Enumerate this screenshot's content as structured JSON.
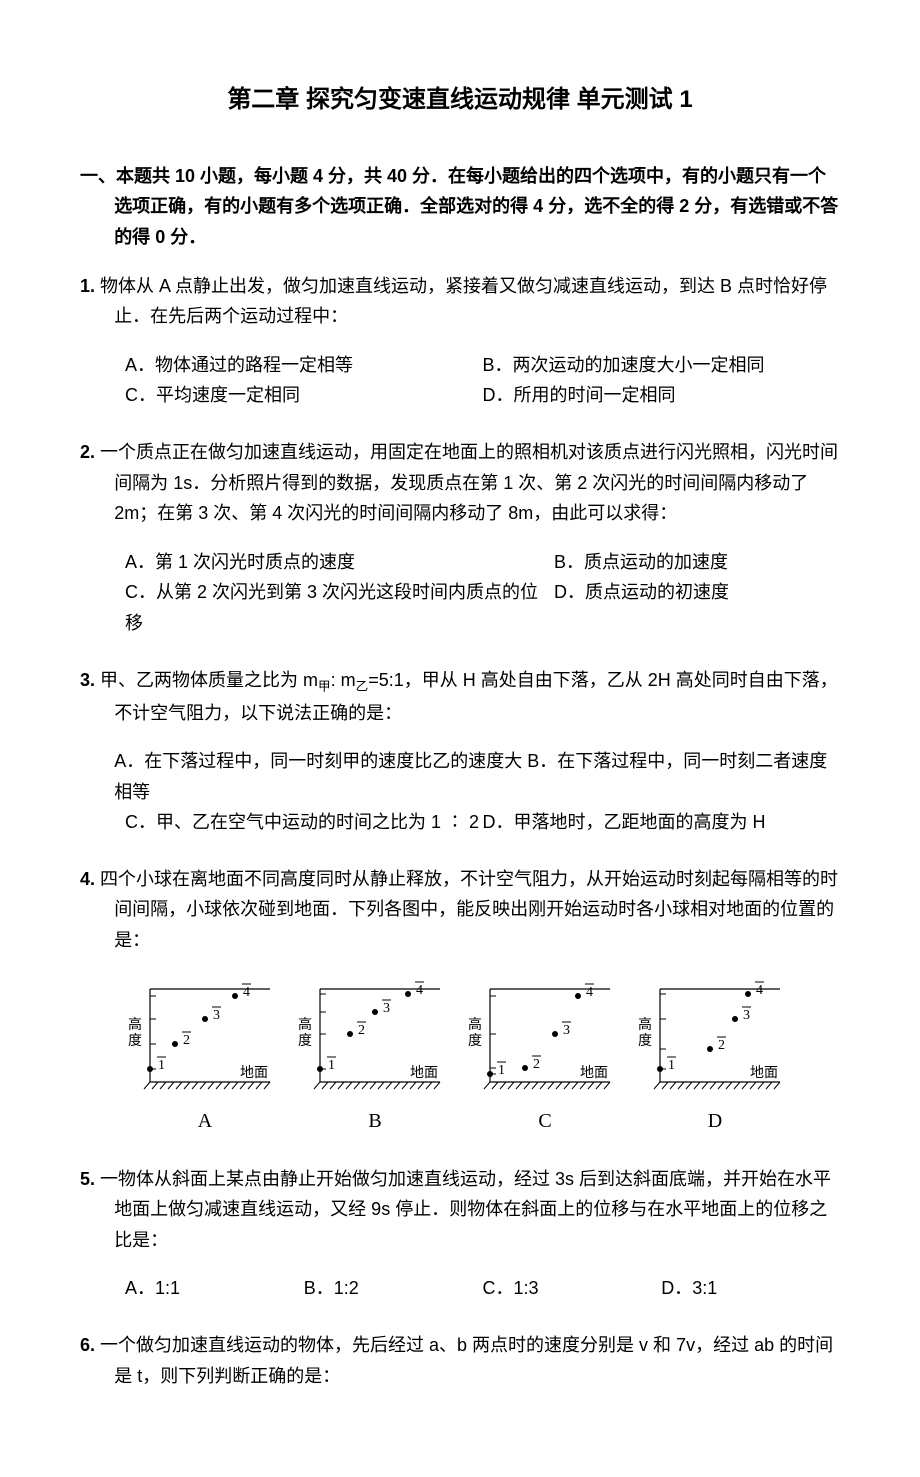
{
  "title": "第二章  探究匀变速直线运动规律  单元测试 1",
  "section": "一、本题共 10 小题，每小题 4 分，共 40 分．在每小题给出的四个选项中，有的小题只有一个选项正确，有的小题有多个选项正确．全部选对的得 4 分，选不全的得 2 分，有选错或不答的得 0 分．",
  "q1": {
    "num": "1.",
    "text": "物体从 A 点静止出发，做匀加速直线运动，紧接着又做匀减速直线运动，到达 B 点时恰好停止．在先后两个运动过程中：",
    "A": "A．物体通过的路程一定相等",
    "B": "B．两次运动的加速度大小一定相同",
    "C": "C．平均速度一定相同",
    "D": "D．所用的时间一定相同"
  },
  "q2": {
    "num": "2.",
    "text": "一个质点正在做匀加速直线运动，用固定在地面上的照相机对该质点进行闪光照相，闪光时间间隔为 1s．分析照片得到的数据，发现质点在第 1 次、第 2 次闪光的时间间隔内移动了 2m；在第 3 次、第 4 次闪光的时间间隔内移动了 8m，由此可以求得：",
    "A": "A．第 1 次闪光时质点的速度",
    "B": "B．质点运动的加速度",
    "C": "C．从第 2 次闪光到第 3 次闪光这段时间内质点的位移",
    "D": "D．质点运动的初速度"
  },
  "q3": {
    "num": "3.",
    "text_a": "甲、乙两物体质量之比为 m",
    "text_b": "甲",
    "text_c": ": m",
    "text_d": "乙",
    "text_e": "=5:1，甲从 H 高处自由下落，乙从 2H 高处同时自由下落，不计空气阻力，以下说法正确的是：",
    "A": "A．在下落过程中，同一时刻甲的速度比乙的速度大",
    "B": "B．在下落过程中，同一时刻二者速度相等",
    "C": "C．甲、乙在空气中运动的时间之比为 1 ∶ 2",
    "D": "D．甲落地时，乙距地面的高度为 H"
  },
  "q4": {
    "num": "4.",
    "text": "四个小球在离地面不同高度同时从静止释放，不计空气阻力，从开始运动时刻起每隔相等的时间间隔，小球依次碰到地面．下列各图中，能反映出刚开始运动时各小球相对地面的位置的是：",
    "ylabel": "高度",
    "xlabel": "地面",
    "panels": {
      "A": {
        "label": "A",
        "points": [
          [
            30,
            95
          ],
          [
            55,
            70
          ],
          [
            85,
            45
          ],
          [
            115,
            22
          ]
        ]
      },
      "B": {
        "label": "B",
        "points": [
          [
            30,
            95
          ],
          [
            60,
            60
          ],
          [
            85,
            38
          ],
          [
            118,
            20
          ]
        ]
      },
      "C": {
        "label": "C",
        "points": [
          [
            30,
            100
          ],
          [
            65,
            94
          ],
          [
            95,
            60
          ],
          [
            118,
            22
          ]
        ]
      },
      "D": {
        "label": "D",
        "points": [
          [
            30,
            95
          ],
          [
            80,
            75
          ],
          [
            105,
            45
          ],
          [
            118,
            20
          ]
        ]
      }
    },
    "axis_color": "#000000",
    "dot_color": "#000000",
    "bg": "#ffffff"
  },
  "q5": {
    "num": "5.",
    "text": "一物体从斜面上某点由静止开始做匀加速直线运动，经过 3s 后到达斜面底端，并开始在水平地面上做匀减速直线运动，又经 9s 停止．则物体在斜面上的位移与在水平地面上的位移之比是：",
    "A": "A．1:1",
    "B": "B．1:2",
    "C": "C．1:3",
    "D": "D．3:1"
  },
  "q6": {
    "num": "6.",
    "text": "一个做匀加速直线运动的物体，先后经过 a、b 两点时的速度分别是 v 和 7v，经过 ab 的时间是 t，则下列判断正确的是："
  }
}
